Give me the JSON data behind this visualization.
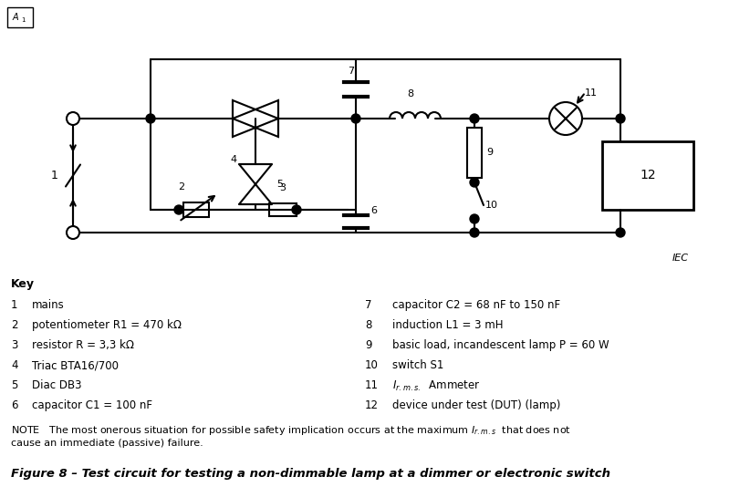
{
  "title": "Figure 8 – Test circuit for testing a non-dimmable lamp at a dimmer or electronic switch",
  "iec_label": "IEC",
  "key_title": "Key",
  "key_items_left": [
    [
      "1",
      "mains"
    ],
    [
      "2",
      "potentiometer R1 = 470 kΩ"
    ],
    [
      "3",
      "resistor R = 3,3 kΩ"
    ],
    [
      "4",
      "Triac BTA16/700"
    ],
    [
      "5",
      "Diac DB3"
    ],
    [
      "6",
      "capacitor C1 = 100 nF"
    ]
  ],
  "key_items_right": [
    [
      "7",
      "capacitor C2 = 68 nF to 150 nF"
    ],
    [
      "8",
      "induction L1 = 3 mH"
    ],
    [
      "9",
      "basic load, incandescent lamp P = 60 W"
    ],
    [
      "10",
      "switch S1"
    ],
    [
      "11",
      "Ammeter"
    ],
    [
      "12",
      "device under test (DUT) (lamp)"
    ]
  ],
  "bg_color": "#ffffff",
  "line_color": "#000000",
  "fig_width": 7.99,
  "fig_height": 5.34
}
